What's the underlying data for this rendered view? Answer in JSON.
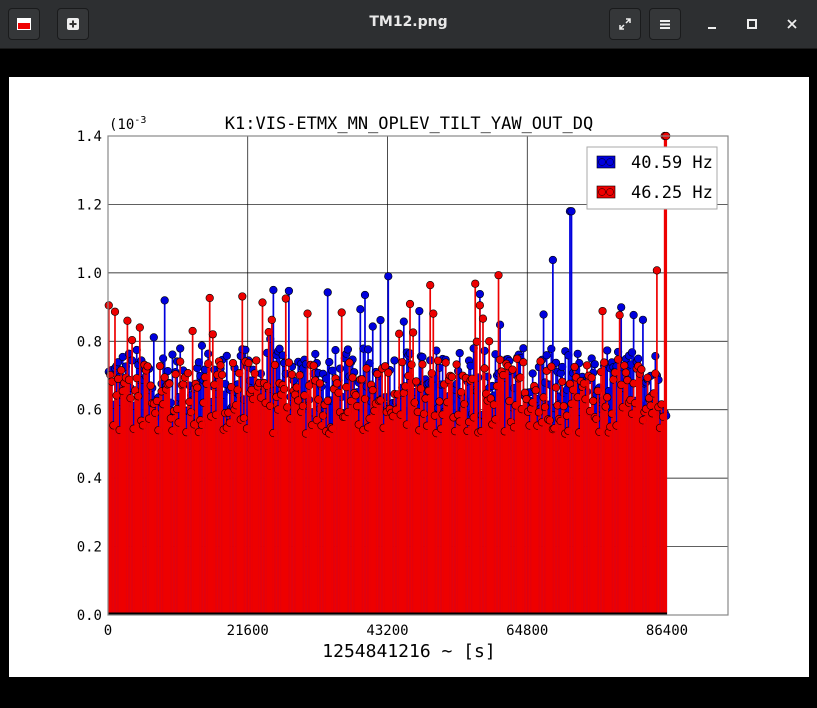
{
  "window": {
    "title": "TM12.png"
  },
  "icons": {
    "app": "image-viewer-icon",
    "new": "new-tab-icon",
    "fullscreen": "fullscreen-icon",
    "menu": "hamburger-menu-icon",
    "minimize": "minimize-icon",
    "maximize": "maximize-icon",
    "close": "close-icon"
  },
  "chart_data": {
    "type": "line",
    "title": "K1:VIS-ETMX_MN_OPLEV_TILT_YAW_OUT_DQ",
    "xlabel": "1254841216 ~ [s]",
    "ylabel": "",
    "yscale_label": "(10",
    "yscale_exp": "-3",
    "xlim": [
      0,
      86400
    ],
    "ylim": [
      0,
      0.0014
    ],
    "xticks": [
      "0",
      "21600",
      "43200",
      "64800",
      "86400"
    ],
    "yticks": [
      "0.0",
      "0.2",
      "0.4",
      "0.6",
      "0.8",
      "1.0",
      "1.2",
      "1.4"
    ],
    "grid": true,
    "legend_position": "top-right",
    "series": [
      {
        "name": "40.59 Hz",
        "color": "#0000dd",
        "baseline": 0.00068,
        "spread": 0.0001,
        "peak": 0.00118,
        "peak_x": 71500
      },
      {
        "name": "46.25 Hz",
        "color": "#ee0000",
        "baseline": 0.00064,
        "spread": 0.00011,
        "peak": 0.00141,
        "peak_x": 86200
      }
    ]
  }
}
